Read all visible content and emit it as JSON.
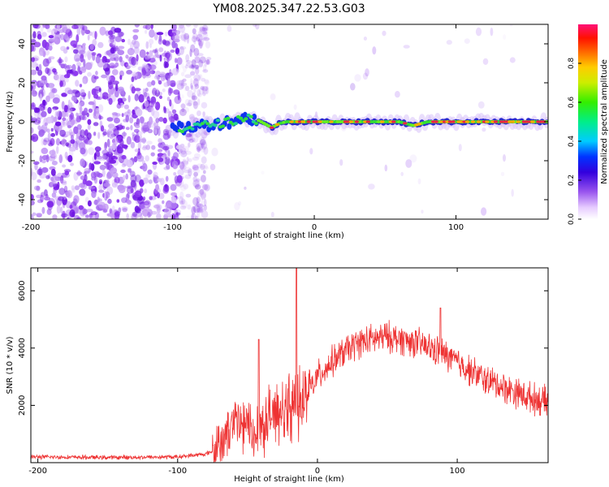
{
  "title": "YM08.2025.347.22.53.G03",
  "chart_data": [
    {
      "type": "heatmap",
      "name": "spectrogram",
      "xlabel": "Height of straight line (km)",
      "ylabel": "Frequency (Hz)",
      "xlim": [
        -200,
        165
      ],
      "ylim": [
        -50,
        50
      ],
      "xticks": [
        -200,
        -100,
        0,
        100
      ],
      "yticks": [
        -40,
        -20,
        0,
        20,
        40
      ],
      "ridge": {
        "description_free": true,
        "x": [
          -100,
          -90,
          -80,
          -70,
          -60,
          -50,
          -40,
          -35,
          -30,
          -25,
          -20,
          -10,
          0,
          20,
          40,
          60,
          65,
          70,
          75,
          80,
          90,
          100,
          110,
          120,
          140,
          165
        ],
        "freq": [
          -4,
          -3,
          -2,
          -1,
          0,
          2,
          1,
          -1,
          -3,
          -1,
          0,
          0,
          0,
          0,
          0,
          0,
          -1,
          -2,
          -1,
          0,
          0,
          0,
          0,
          0,
          0,
          0
        ]
      },
      "colorbar": {
        "label": "Normalized spectral amplitude",
        "range": [
          0.0,
          1.0
        ],
        "ticks": [
          0.0,
          0.2,
          0.4,
          0.6,
          0.8
        ]
      }
    },
    {
      "type": "line",
      "name": "snr",
      "xlabel": "Height of straight line (km)",
      "ylabel": "SNR (10 * v/v)",
      "xlim": [
        -205,
        165
      ],
      "ylim": [
        0,
        6800
      ],
      "xticks": [
        -200,
        -100,
        0,
        100
      ],
      "yticks": [
        2000,
        4000,
        6000
      ],
      "color": "#ee3333",
      "envelope": {
        "x": [
          -205,
          -150,
          -100,
          -80,
          -70,
          -60,
          -50,
          -40,
          -30,
          -20,
          -10,
          0,
          10,
          20,
          30,
          40,
          50,
          60,
          70,
          80,
          90,
          100,
          110,
          120,
          130,
          140,
          150,
          165
        ],
        "y": [
          200,
          180,
          200,
          300,
          500,
          1400,
          1200,
          1300,
          1800,
          2000,
          2200,
          3000,
          3500,
          3900,
          4200,
          4300,
          4400,
          4300,
          4200,
          4000,
          3800,
          3500,
          3200,
          2900,
          2700,
          2500,
          2300,
          2100
        ]
      },
      "spikes": [
        {
          "x": -15,
          "y": 6800
        },
        {
          "x": -42,
          "y": 4300
        },
        {
          "x": 88,
          "y": 5400
        }
      ]
    }
  ]
}
